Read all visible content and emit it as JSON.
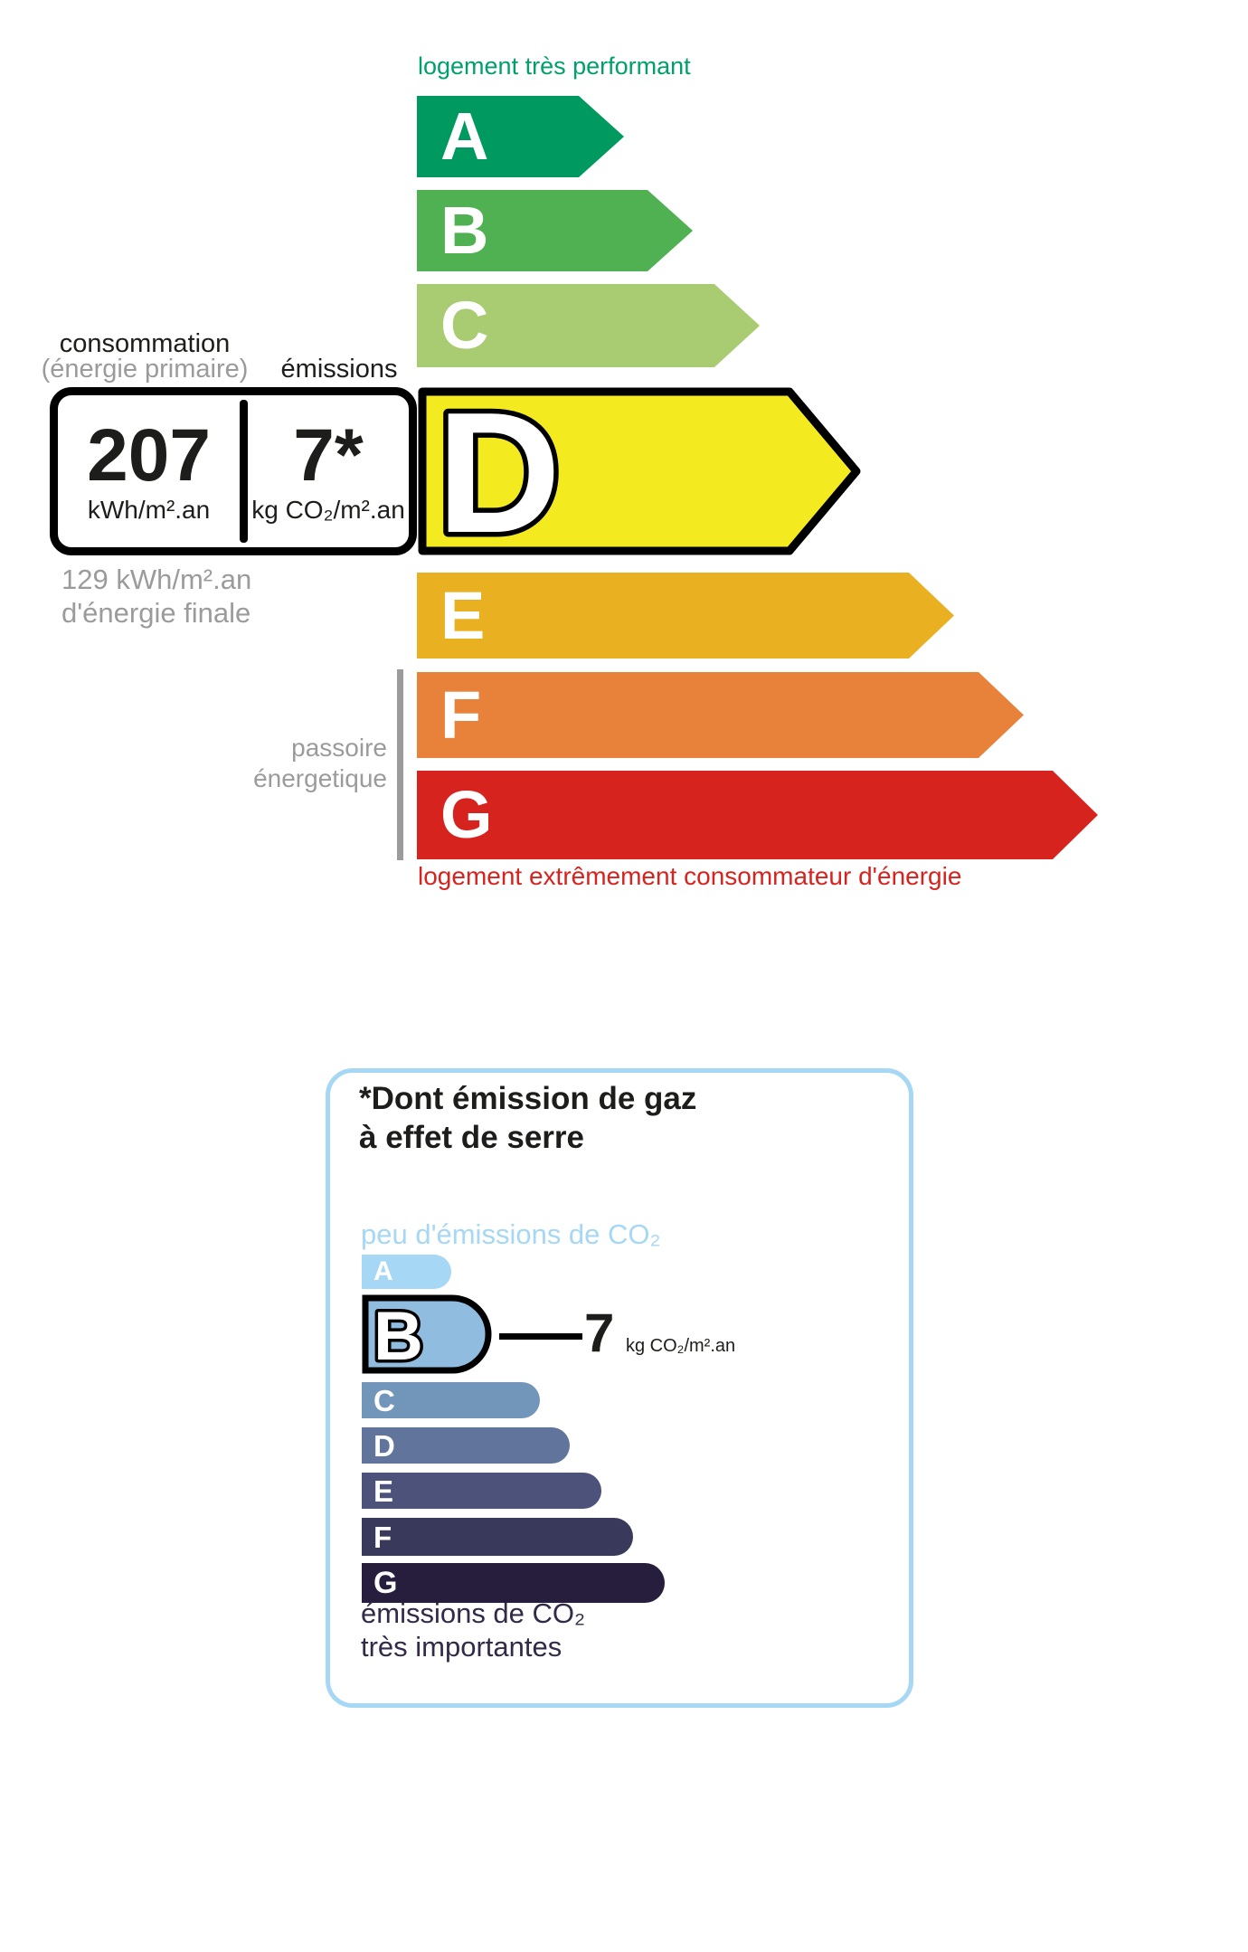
{
  "colors": {
    "label_good": "#00a06d",
    "label_bad": "#d7231e",
    "gray": "#9c9b9b",
    "text": "#1d1d1b",
    "co2_accent": "#a6d7f4",
    "co2_dark_text": "#322a48"
  },
  "energy_scale": {
    "top_label": "logement très performant",
    "bottom_label": "logement extrêmement consommateur d'énergie",
    "header": {
      "consumption": "consommation",
      "consumption_sub": "(énergie primaire)",
      "emissions": "émissions"
    },
    "current": {
      "letter": "D",
      "color": "#f3ea20",
      "consumption_value": "207",
      "consumption_unit": "kWh/m².an",
      "emissions_value": "7*",
      "emissions_unit": "kg CO₂/m².an"
    },
    "final_energy_note": {
      "line1": "129 kWh/m².an",
      "line2": "d'énergie finale"
    },
    "sieve_label": {
      "line1": "passoire",
      "line2": "énergetique"
    },
    "bars": [
      {
        "letter": "A",
        "color": "#009a60"
      },
      {
        "letter": "B",
        "color": "#50b152"
      },
      {
        "letter": "C",
        "color": "#a9cb72"
      },
      {
        "letter": "D",
        "color": "#f3ea20",
        "current": true
      },
      {
        "letter": "E",
        "color": "#e9b122"
      },
      {
        "letter": "F",
        "color": "#e8823a"
      },
      {
        "letter": "G",
        "color": "#d7231e"
      }
    ]
  },
  "co2_scale": {
    "title": {
      "line1": "*Dont émission de gaz",
      "line2": "à effet de serre"
    },
    "top_label": "peu d'émissions de CO₂",
    "bottom_label": {
      "line1": "émissions de CO₂",
      "line2": "très importantes"
    },
    "current": {
      "letter": "B",
      "color": "#8fbcdf",
      "value": "7",
      "unit": "kg CO₂/m².an"
    },
    "bars": [
      {
        "letter": "A",
        "color": "#a6d7f4"
      },
      {
        "letter": "B",
        "color": "#8fbcdf",
        "current": true
      },
      {
        "letter": "C",
        "color": "#7296b9"
      },
      {
        "letter": "D",
        "color": "#61749c"
      },
      {
        "letter": "E",
        "color": "#4d527a"
      },
      {
        "letter": "F",
        "color": "#39395c"
      },
      {
        "letter": "G",
        "color": "#261e3c"
      }
    ]
  }
}
